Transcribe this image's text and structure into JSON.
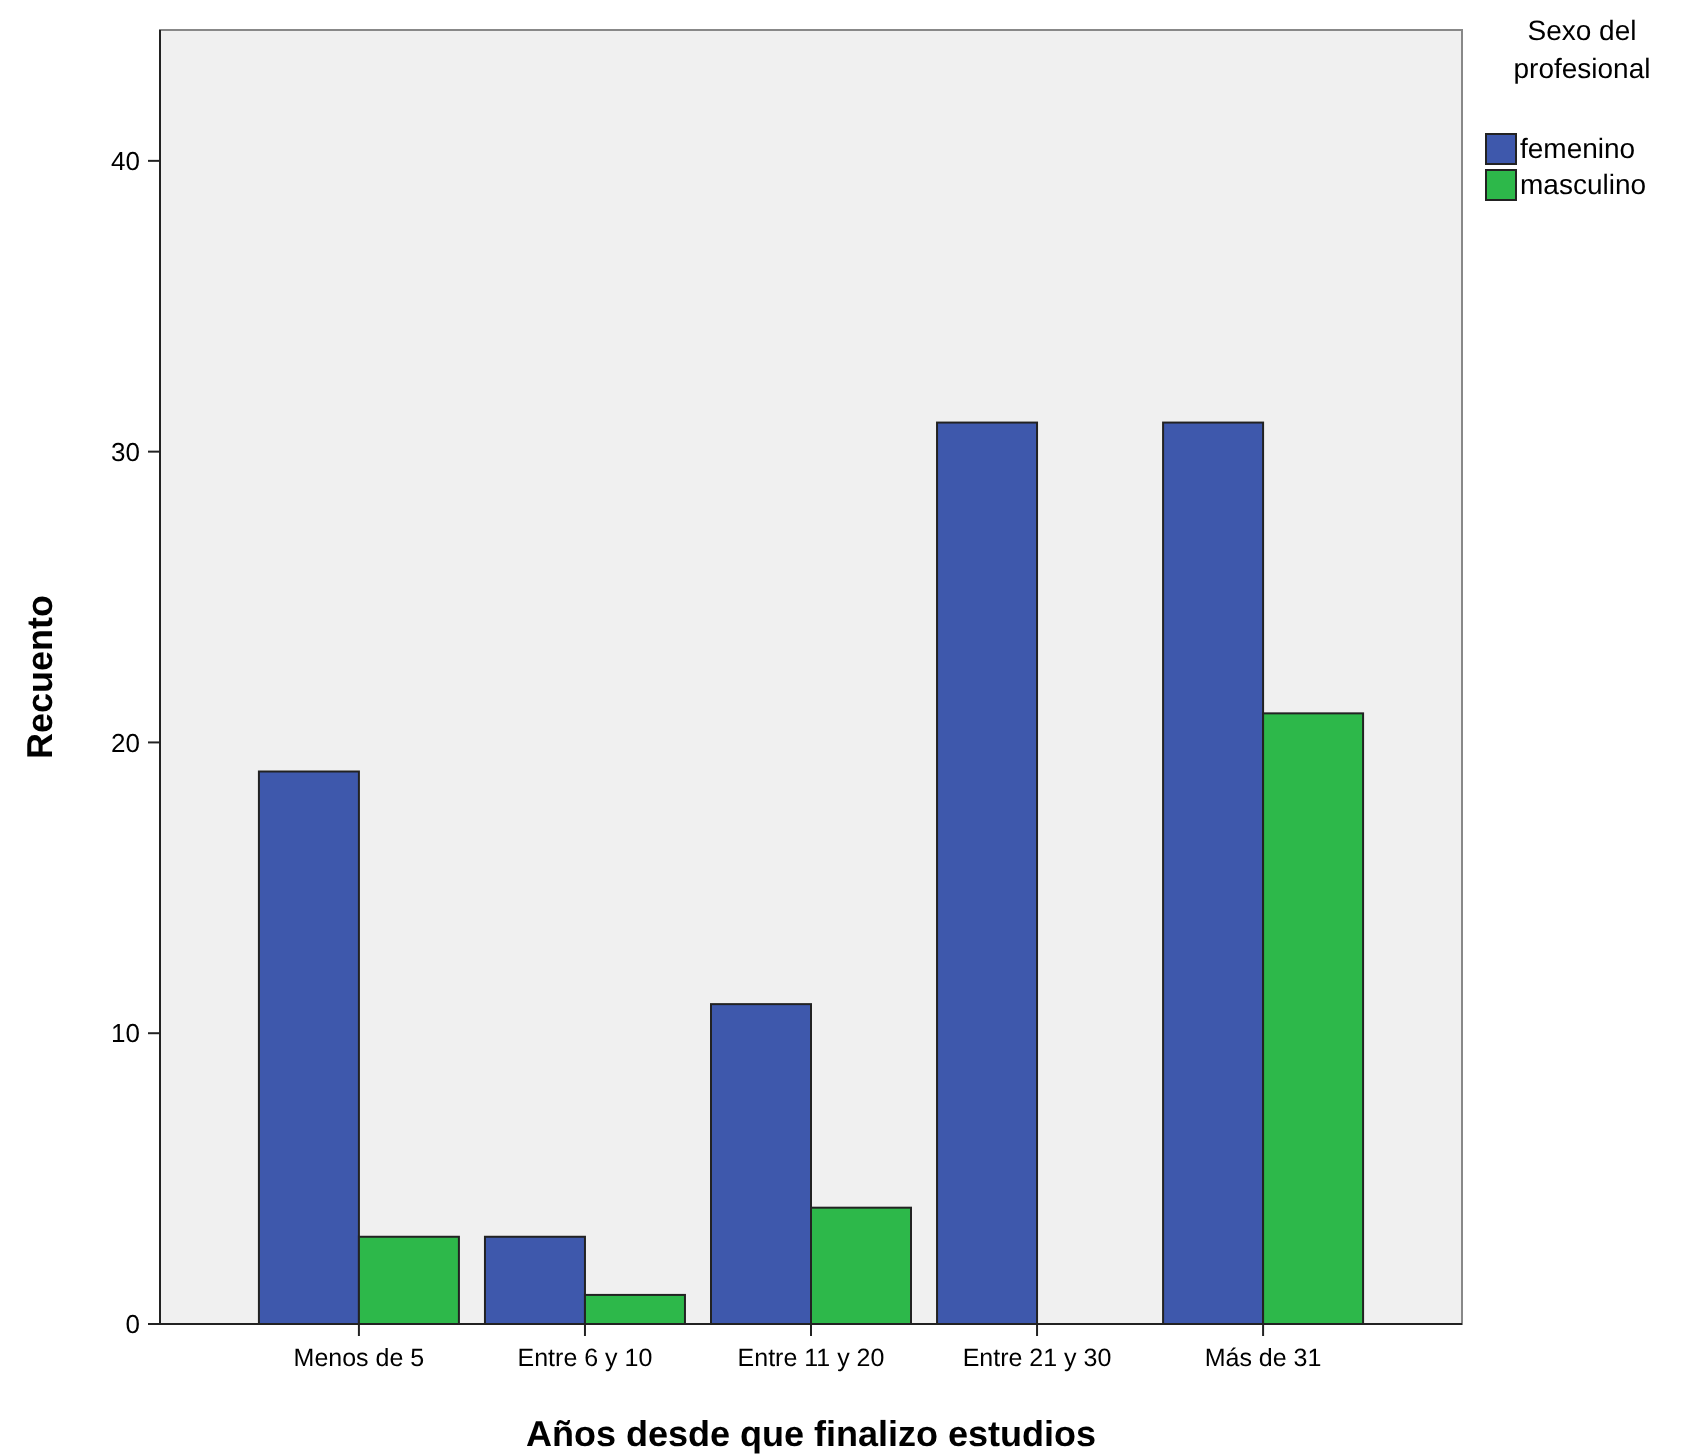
{
  "chart_data": {
    "type": "bar",
    "xlabel": "Años desde que finalizo estudios",
    "ylabel": "Recuento",
    "legend_title": "Sexo del profesional",
    "categories": [
      "Menos de 5",
      "Entre 6 y 10",
      "Entre 11 y 20",
      "Entre 21 y 30",
      "Más de 31"
    ],
    "series": [
      {
        "name": "femenino",
        "color": "#3e58ac",
        "values": [
          19,
          3,
          11,
          31,
          31
        ]
      },
      {
        "name": "masculino",
        "color": "#2db84a",
        "values": [
          3,
          1,
          4,
          null,
          21
        ]
      }
    ],
    "ylim": [
      0,
      44.5
    ],
    "yticks": [
      0,
      10,
      20,
      30,
      40
    ],
    "grid": false,
    "legend": "right"
  }
}
